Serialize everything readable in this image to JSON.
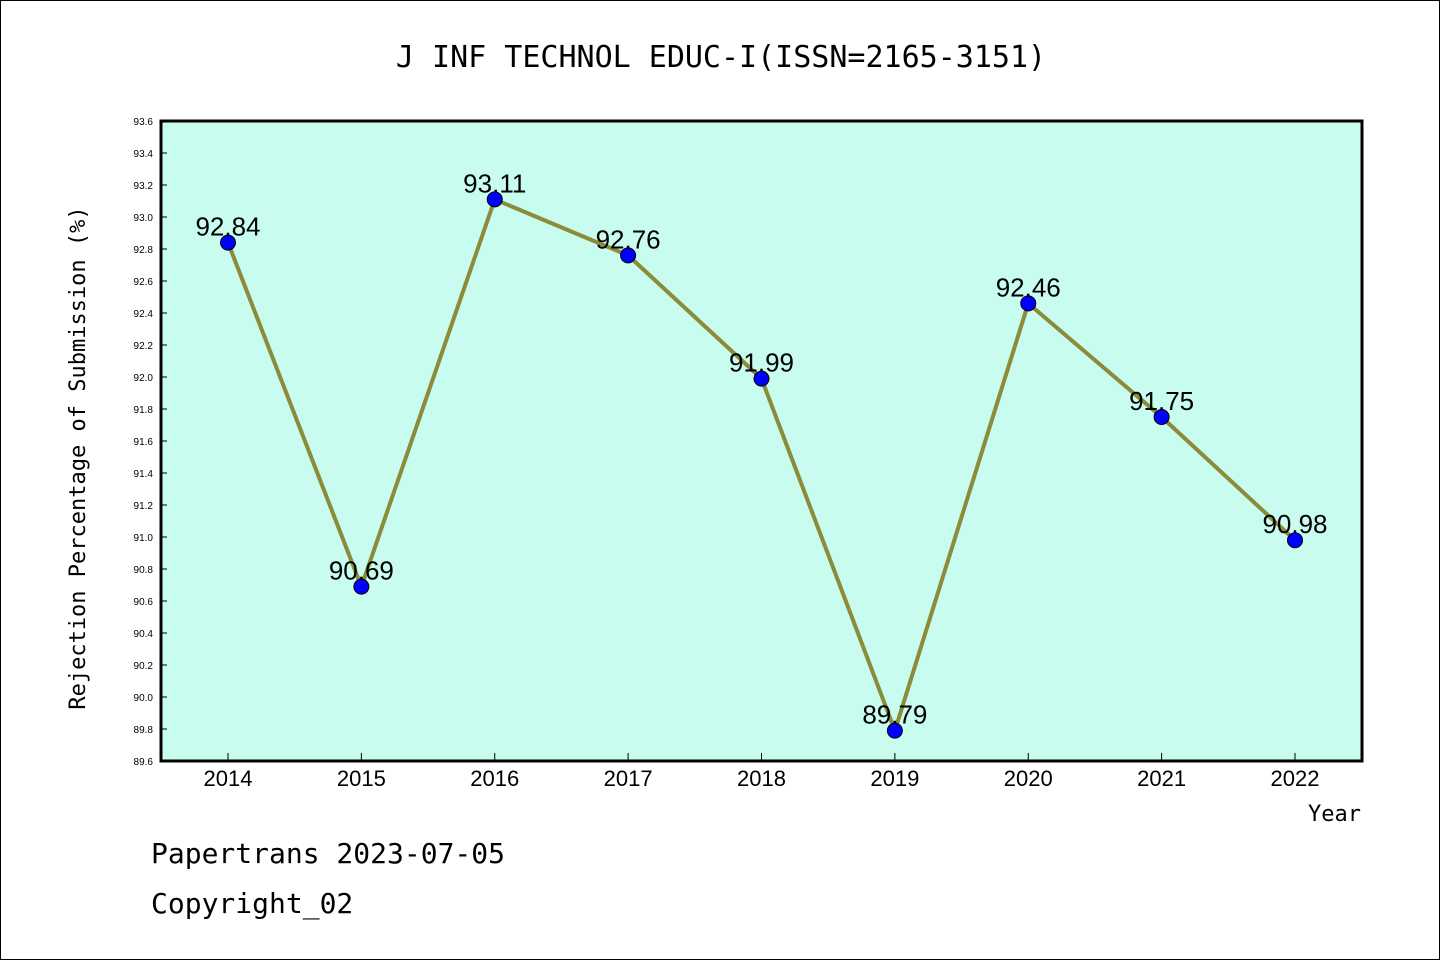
{
  "chart_data": {
    "type": "line",
    "title": "J INF TECHNOL EDUC-I(ISSN=2165-3151)",
    "xlabel": "Year",
    "ylabel": "Rejection Percentage of Submission (%)",
    "categories": [
      "2014",
      "2015",
      "2016",
      "2017",
      "2018",
      "2019",
      "2020",
      "2021",
      "2022"
    ],
    "series": [
      {
        "values": [
          92.84,
          90.69,
          93.11,
          92.76,
          91.99,
          89.79,
          92.46,
          91.75,
          90.98
        ]
      }
    ],
    "data_labels": [
      "92.84",
      "90.69",
      "93.11",
      "92.76",
      "91.99",
      "89.79",
      "92.46",
      "91.75",
      "90.98"
    ],
    "ylim": [
      89.6,
      93.6
    ],
    "yticks": [
      "89.6",
      "89.8",
      "90.0",
      "90.2",
      "90.4",
      "90.6",
      "90.8",
      "91.0",
      "91.2",
      "91.4",
      "91.6",
      "91.8",
      "92.0",
      "92.2",
      "92.4",
      "92.6",
      "92.8",
      "93.0",
      "93.2",
      "93.4",
      "93.6"
    ],
    "grid": false,
    "colors": {
      "plot_background": "#c8fcee",
      "line": "#8b8b3a",
      "marker": "#0000ff"
    }
  },
  "footer": {
    "line1": "Papertrans 2023-07-05",
    "line2": "Copyright_02"
  }
}
